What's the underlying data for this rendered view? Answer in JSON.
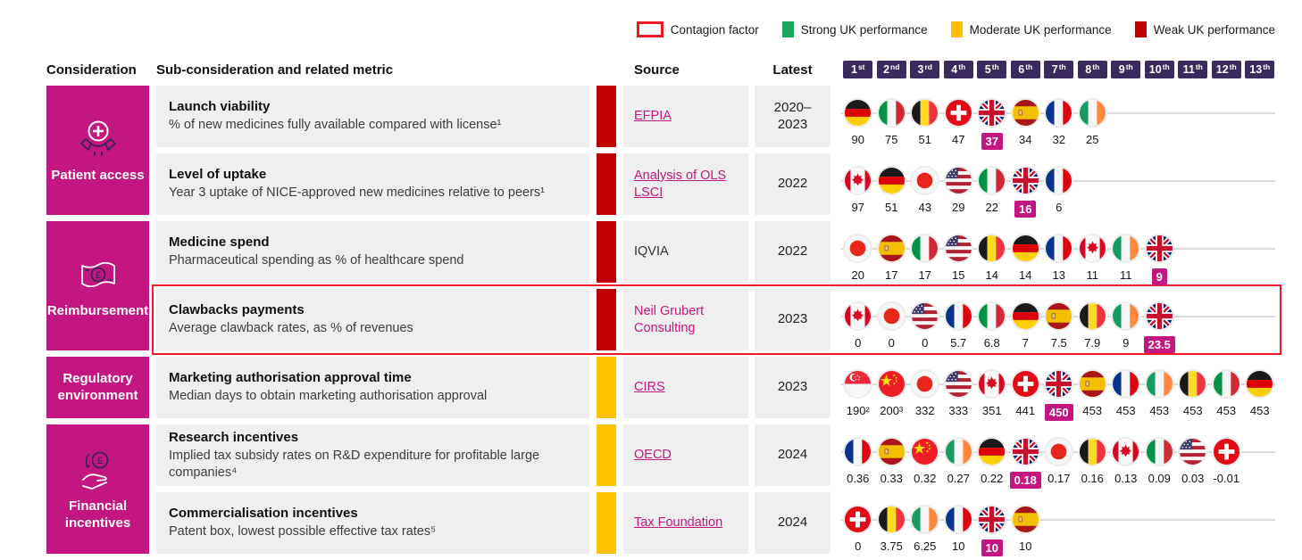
{
  "colors": {
    "brand_pink": "#C31680",
    "rank_purple": "#3A2A5E",
    "weak": "#C00000",
    "moderate": "#FFC000",
    "strong": "#17A65B",
    "contagion": "#ED1C24"
  },
  "legend": {
    "items": [
      {
        "label": "Contagion factor",
        "type": "outline",
        "color": "#ED1C24"
      },
      {
        "label": "Strong UK performance",
        "type": "fill",
        "color": "#17A65B"
      },
      {
        "label": "Moderate UK performance",
        "type": "fill",
        "color": "#FFC000"
      },
      {
        "label": "Weak UK performance",
        "type": "fill",
        "color": "#C00000"
      }
    ]
  },
  "header": {
    "consideration": "Consideration",
    "sub_consideration": "Sub-consideration and related metric",
    "source": "Source",
    "latest": "Latest",
    "ranks": [
      {
        "n": "1",
        "s": "st"
      },
      {
        "n": "2",
        "s": "nd"
      },
      {
        "n": "3",
        "s": "rd"
      },
      {
        "n": "4",
        "s": "th"
      },
      {
        "n": "5",
        "s": "th"
      },
      {
        "n": "6",
        "s": "th"
      },
      {
        "n": "7",
        "s": "th"
      },
      {
        "n": "8",
        "s": "th"
      },
      {
        "n": "9",
        "s": "th"
      },
      {
        "n": "10",
        "s": "th"
      },
      {
        "n": "11",
        "s": "th"
      },
      {
        "n": "12",
        "s": "th"
      },
      {
        "n": "13",
        "s": "th"
      }
    ]
  },
  "groups": [
    {
      "label": "Patient access",
      "icon": "hands-medical-icon",
      "span": 2
    },
    {
      "label": "Reimbursement",
      "icon": "banknote-icon",
      "span": 2
    },
    {
      "label": "Regulatory environment",
      "icon": null,
      "span": 1
    },
    {
      "label": "Financial incentives",
      "icon": "hand-coin-icon",
      "span": 2
    }
  ],
  "rows": [
    {
      "title": "Launch viability",
      "description": "% of new medicines fully available compared with license¹",
      "rating": "weak",
      "source": {
        "label": "EFPIA",
        "style": "link"
      },
      "latest": "2020–\n2023",
      "contagion": false,
      "flags": [
        {
          "country": "de",
          "value": "90"
        },
        {
          "country": "it",
          "value": "75"
        },
        {
          "country": "be",
          "value": "51"
        },
        {
          "country": "ch",
          "value": "47"
        },
        {
          "country": "gb",
          "value": "37",
          "uk": true
        },
        {
          "country": "es",
          "value": "34"
        },
        {
          "country": "fr",
          "value": "32"
        },
        {
          "country": "ie",
          "value": "25"
        }
      ]
    },
    {
      "title": "Level of uptake",
      "description": "Year 3 uptake of NICE-approved new medicines relative to peers¹",
      "rating": "weak",
      "source": {
        "label": "Analysis of OLS LSCI",
        "style": "link"
      },
      "latest": "2022",
      "contagion": false,
      "flags": [
        {
          "country": "ca",
          "value": "97"
        },
        {
          "country": "de",
          "value": "51"
        },
        {
          "country": "jp",
          "value": "43"
        },
        {
          "country": "us",
          "value": "29"
        },
        {
          "country": "it",
          "value": "22"
        },
        {
          "country": "gb",
          "value": "16",
          "uk": true
        },
        {
          "country": "fr",
          "value": "6"
        }
      ]
    },
    {
      "title": "Medicine spend",
      "description": "Pharmaceutical spending as % of healthcare spend",
      "rating": "weak",
      "source": {
        "label": "IQVIA",
        "style": "plain"
      },
      "latest": "2022",
      "contagion": false,
      "flags": [
        {
          "country": "jp",
          "value": "20"
        },
        {
          "country": "es",
          "value": "17"
        },
        {
          "country": "it",
          "value": "17"
        },
        {
          "country": "us",
          "value": "15"
        },
        {
          "country": "be",
          "value": "14"
        },
        {
          "country": "de",
          "value": "14"
        },
        {
          "country": "fr",
          "value": "13"
        },
        {
          "country": "ca",
          "value": "11"
        },
        {
          "country": "ie",
          "value": "11"
        },
        {
          "country": "gb",
          "value": "9",
          "uk": true
        }
      ]
    },
    {
      "title": "Clawbacks payments",
      "description": "Average clawback rates, as % of revenues",
      "rating": "weak",
      "source": {
        "label": "Neil Grubert Consulting",
        "style": "accent"
      },
      "latest": "2023",
      "contagion": true,
      "flags": [
        {
          "country": "ca",
          "value": "0"
        },
        {
          "country": "jp",
          "value": "0"
        },
        {
          "country": "us",
          "value": "0"
        },
        {
          "country": "fr",
          "value": "5.7"
        },
        {
          "country": "it",
          "value": "6.8"
        },
        {
          "country": "de",
          "value": "7"
        },
        {
          "country": "es",
          "value": "7.5"
        },
        {
          "country": "be",
          "value": "7.9"
        },
        {
          "country": "ie",
          "value": "9"
        },
        {
          "country": "gb",
          "value": "23.5",
          "uk": true
        }
      ]
    },
    {
      "title": "Marketing authorisation approval time",
      "description": "Median days to obtain marketing authorisation approval",
      "rating": "moderate",
      "source": {
        "label": "CIRS",
        "style": "link"
      },
      "latest": "2023",
      "contagion": false,
      "flags": [
        {
          "country": "sg",
          "value": "190²"
        },
        {
          "country": "cn",
          "value": "200³"
        },
        {
          "country": "jp",
          "value": "332"
        },
        {
          "country": "us",
          "value": "333"
        },
        {
          "country": "ca",
          "value": "351"
        },
        {
          "country": "ch",
          "value": "441"
        },
        {
          "country": "gb",
          "value": "450",
          "uk": true
        },
        {
          "country": "es",
          "value": "453"
        },
        {
          "country": "fr",
          "value": "453"
        },
        {
          "country": "ie",
          "value": "453"
        },
        {
          "country": "be",
          "value": "453"
        },
        {
          "country": "it",
          "value": "453"
        },
        {
          "country": "de",
          "value": "453"
        }
      ]
    },
    {
      "title": "Research incentives",
      "description": "Implied tax subsidy rates on R&D expenditure for profitable large companies⁴",
      "rating": "moderate",
      "source": {
        "label": "OECD",
        "style": "link"
      },
      "latest": "2024",
      "contagion": false,
      "flags": [
        {
          "country": "fr",
          "value": "0.36"
        },
        {
          "country": "es",
          "value": "0.33"
        },
        {
          "country": "cn",
          "value": "0.32"
        },
        {
          "country": "ie",
          "value": "0.27"
        },
        {
          "country": "de",
          "value": "0.22"
        },
        {
          "country": "gb",
          "value": "0.18",
          "uk": true
        },
        {
          "country": "jp",
          "value": "0.17"
        },
        {
          "country": "be",
          "value": "0.16"
        },
        {
          "country": "ca",
          "value": "0.13"
        },
        {
          "country": "it",
          "value": "0.09"
        },
        {
          "country": "us",
          "value": "0.03"
        },
        {
          "country": "ch",
          "value": "-0.01"
        }
      ]
    },
    {
      "title": "Commercialisation incentives",
      "description": "Patent box, lowest possible effective tax rates⁵",
      "rating": "moderate",
      "source": {
        "label": "Tax Foundation",
        "style": "link"
      },
      "latest": "2024",
      "contagion": false,
      "flags": [
        {
          "country": "ch",
          "value": "0"
        },
        {
          "country": "be",
          "value": "3.75"
        },
        {
          "country": "ie",
          "value": "6.25"
        },
        {
          "country": "fr",
          "value": "10"
        },
        {
          "country": "gb",
          "value": "10",
          "uk": true
        },
        {
          "country": "es",
          "value": "10"
        }
      ]
    }
  ]
}
